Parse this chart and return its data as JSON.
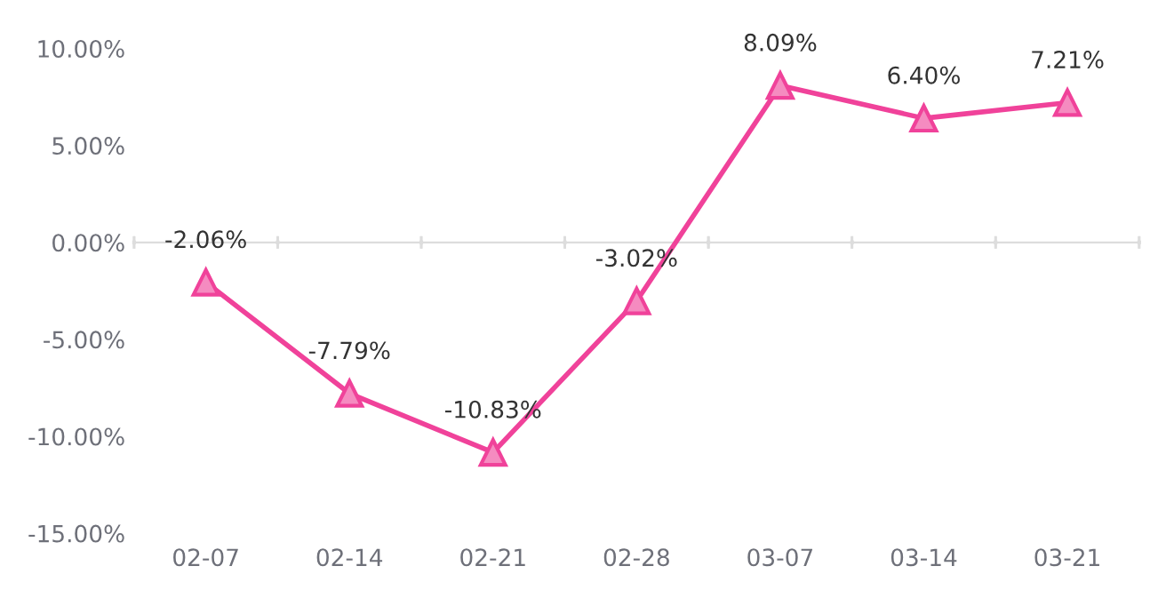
{
  "chart_data": {
    "type": "line",
    "categories": [
      "02-07",
      "02-14",
      "02-21",
      "02-28",
      "03-07",
      "03-14",
      "03-21"
    ],
    "series": [
      {
        "color": "#f0429a",
        "values": [
          -2.06,
          -7.79,
          -10.83,
          -3.02,
          8.09,
          6.4,
          7.21
        ],
        "value_labels": [
          "-2.06%",
          "-7.79%",
          "-10.83%",
          "-3.02%",
          "8.09%",
          "6.40%",
          "7.21%"
        ]
      }
    ],
    "ylim": [
      -15,
      10
    ],
    "yticks": [
      {
        "value": -15,
        "label": "-15.00%"
      },
      {
        "value": -10,
        "label": "-10.00%"
      },
      {
        "value": -5,
        "label": "-5.00%"
      },
      {
        "value": 0,
        "label": "0.00%"
      },
      {
        "value": 5,
        "label": "5.00%"
      },
      {
        "value": 10,
        "label": "10.00%"
      }
    ],
    "marker": "triangle",
    "line_style": "solid"
  }
}
